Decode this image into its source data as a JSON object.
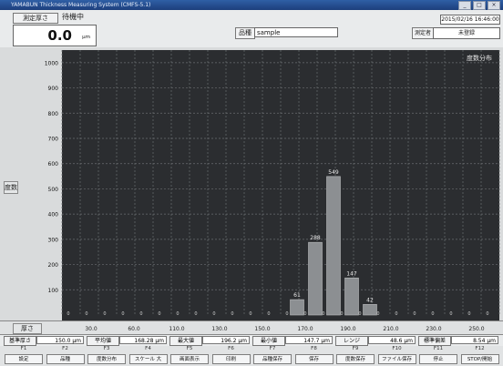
{
  "window": {
    "title": "YAMABUN Thickness Measuring System (CMFS-5.1)",
    "buttons": [
      "_",
      "□",
      "×"
    ]
  },
  "topbar": {
    "thickness_label": "測定厚さ",
    "status": "待機中",
    "thickness_value": "0.0",
    "thickness_unit": "μm",
    "product_label": "品種",
    "product_value": "sample",
    "operator_label": "測定者",
    "operator_value": "未登録",
    "datetime": "2015/02/16 16:46:00"
  },
  "chart_labels": {
    "y_side": "度数",
    "x_side": "厚さ",
    "legend": "度数分布"
  },
  "chart_data": {
    "type": "bar",
    "title": "度数分布",
    "ylabel": "度数",
    "xlabel": "厚さ",
    "ylim": [
      0,
      1050
    ],
    "yticks": [
      100,
      200,
      300,
      400,
      500,
      600,
      700,
      800,
      900,
      1000
    ],
    "xticks": [
      "30.0",
      "60.0",
      "110.0",
      "130.0",
      "150.0",
      "170.0",
      "190.0",
      "210.0",
      "230.0",
      "250.0"
    ],
    "bars": [
      {
        "label": "61",
        "value": 61,
        "center": 149
      },
      {
        "label": "288",
        "value": 288,
        "center": 159
      },
      {
        "label": "549",
        "value": 549,
        "center": 169
      },
      {
        "label": "147",
        "value": 147,
        "center": 179
      },
      {
        "label": "42",
        "value": 42,
        "center": 189
      }
    ],
    "grid": true
  },
  "stats": [
    {
      "label": "基準厚さ",
      "value": "150.0 μm"
    },
    {
      "label": "平均値",
      "value": "168.28 μm"
    },
    {
      "label": "最大値",
      "value": "196.2 μm"
    },
    {
      "label": "最小値",
      "value": "147.7 μm"
    },
    {
      "label": "レンジ",
      "value": "48.6 μm"
    },
    {
      "label": "標準偏差",
      "value": "8.54 μm"
    }
  ],
  "fkeys": [
    {
      "key": "F1",
      "label": "設定"
    },
    {
      "key": "F2",
      "label": "品種"
    },
    {
      "key": "F3",
      "label": "度数分布"
    },
    {
      "key": "F4",
      "label": "スケール 大"
    },
    {
      "key": "F5",
      "label": "画面表示"
    },
    {
      "key": "F6",
      "label": "印刷"
    },
    {
      "key": "F7",
      "label": "品種保存"
    },
    {
      "key": "F8",
      "label": "保存"
    },
    {
      "key": "F9",
      "label": "度数保存"
    },
    {
      "key": "F10",
      "label": "ファイル保存"
    },
    {
      "key": "F11",
      "label": "停止"
    },
    {
      "key": "F12",
      "label": "STOP/開始"
    }
  ]
}
